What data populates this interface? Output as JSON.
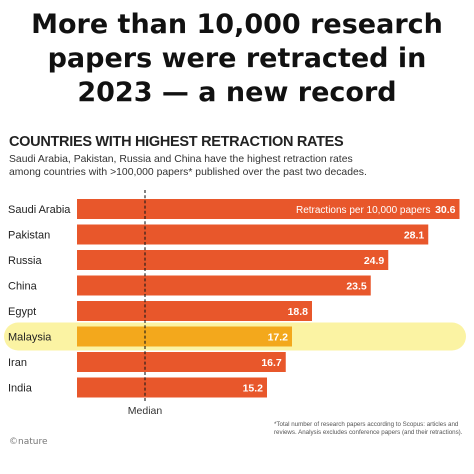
{
  "headline": {
    "line1": "More than 10,000 research",
    "line2": "papers were retracted in",
    "line3": "2023 — a new record"
  },
  "footnote": {
    "line1": "*Total number of research papers according to Scopus: articles and",
    "line2": "reviews. Analysis excludes conference papers (and their retractions)."
  },
  "logo": "©nature",
  "colors": {
    "bar": "#e8572b",
    "highlight_bar": "#f3a81c",
    "highlight_band": "#fbf3a3",
    "label": "#ffffff"
  },
  "chart_data": {
    "type": "bar",
    "orientation": "horizontal",
    "title": "COUNTRIES WITH HIGHEST RETRACTION RATES",
    "subtitle_line1": "Saudi Arabia, Pakistan, Russia and China have the highest retraction rates",
    "subtitle_line2": "among countries with >100,000 papers* published over the past two decades.",
    "value_label_prefix": "Retractions per 10,000 papers",
    "categories": [
      "Saudi Arabia",
      "Pakistan",
      "Russia",
      "China",
      "Egypt",
      "Malaysia",
      "Iran",
      "India"
    ],
    "values": [
      30.6,
      28.1,
      24.9,
      23.5,
      18.8,
      17.2,
      16.7,
      15.2
    ],
    "value_labels": [
      "30.6",
      "28.1",
      "24.9",
      "23.5",
      "18.8",
      "17.2",
      "16.7",
      "15.2"
    ],
    "highlighted_category": "Malaysia",
    "median_label": "Median",
    "xlim": [
      0,
      31.5
    ]
  }
}
